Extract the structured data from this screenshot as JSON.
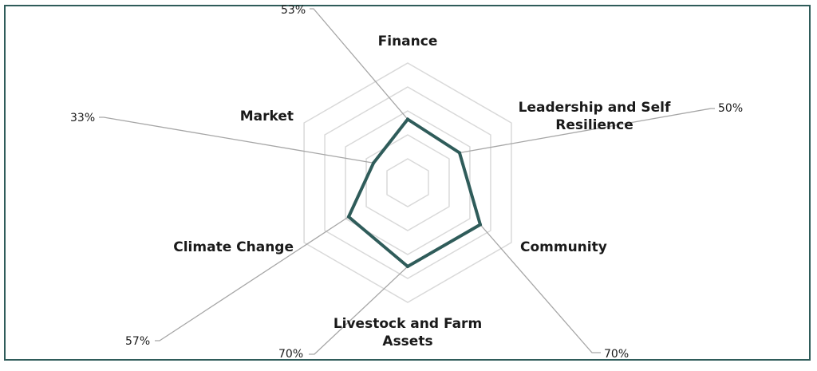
{
  "chart_data": {
    "type": "radar",
    "title": "",
    "categories": [
      "Finance",
      "Leadership and Self Resilience",
      "Community",
      "Livestock and Farm Assets",
      "Climate Change",
      "Market"
    ],
    "category_lines": [
      [
        "Finance"
      ],
      [
        "Leadership and Self",
        "Resilience"
      ],
      [
        "Community"
      ],
      [
        "Livestock and Farm",
        "Assets"
      ],
      [
        "Climate Change"
      ],
      [
        "Market"
      ]
    ],
    "values": [
      53,
      50,
      70,
      70,
      57,
      33
    ],
    "value_labels": [
      "53%",
      "50%",
      "70%",
      "70%",
      "57%",
      "33%"
    ],
    "rmax": 100,
    "grid_rings": 5,
    "grid": true,
    "series_color": "#2f5c5a",
    "grid_color": "#d9d9d9",
    "leader_color": "#a6a6a6",
    "frame_color": "#2f5c5a"
  }
}
